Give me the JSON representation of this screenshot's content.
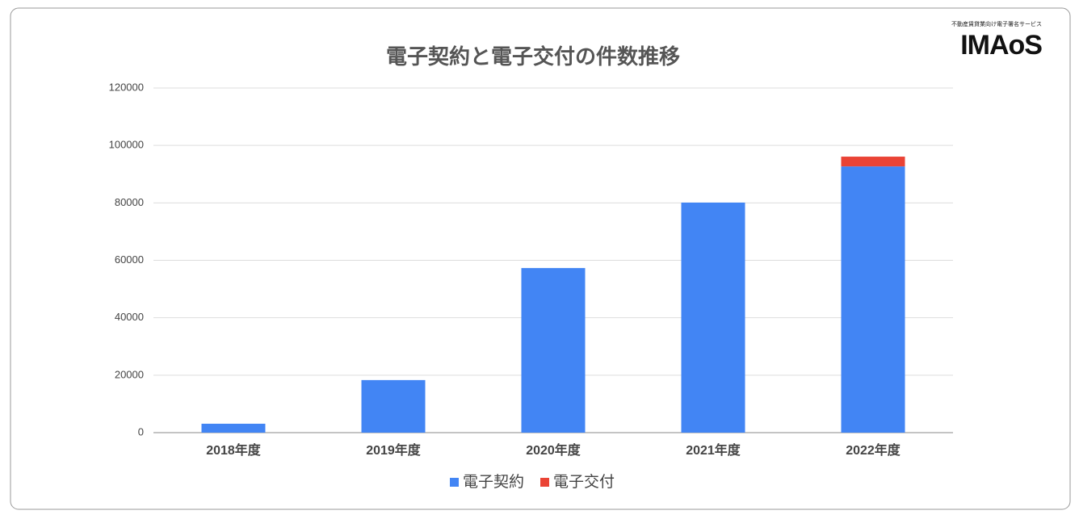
{
  "chart_data": {
    "type": "bar",
    "stacked": true,
    "title": "電子契約と電子交付の件数推移",
    "logo": "IMAoS",
    "logo_caption": "不動産賃貸業向け電子署名サービス",
    "categories": [
      "2018年度",
      "2019年度",
      "2020年度",
      "2021年度",
      "2022年度"
    ],
    "series": [
      {
        "name": "電子契約",
        "color": "#4285f4",
        "values": [
          3100,
          18300,
          57300,
          80100,
          92700
        ]
      },
      {
        "name": "電子交付",
        "color": "#ea4335",
        "values": [
          null,
          null,
          null,
          null,
          3400
        ]
      }
    ],
    "ylim": [
      0,
      120000
    ],
    "yticks": [
      0,
      20000,
      40000,
      60000,
      80000,
      100000,
      120000
    ],
    "grid": true,
    "legend": "bottom"
  }
}
